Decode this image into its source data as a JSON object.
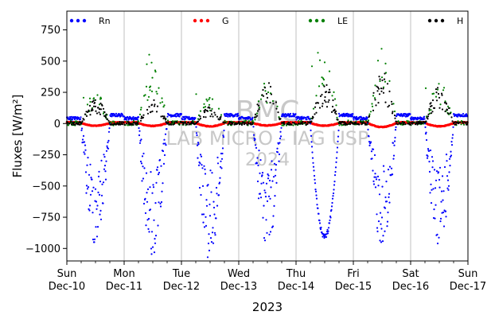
{
  "chart_data": {
    "type": "scatter",
    "xlabel": "2023",
    "ylabel": "Fluxes [W/m²]",
    "ylim": [
      -1100,
      900
    ],
    "yticks": [
      -1000,
      -750,
      -500,
      -250,
      0,
      250,
      500,
      750
    ],
    "xlim": [
      "2023-12-10",
      "2023-12-17"
    ],
    "x_ticks": [
      {
        "day": "Sun",
        "date": "Dec-10"
      },
      {
        "day": "Mon",
        "date": "Dec-11"
      },
      {
        "day": "Tue",
        "date": "Dec-12"
      },
      {
        "day": "Wed",
        "date": "Dec-13"
      },
      {
        "day": "Thu",
        "date": "Dec-14"
      },
      {
        "day": "Fri",
        "date": "Dec-15"
      },
      {
        "day": "Sat",
        "date": "Dec-16"
      },
      {
        "day": "Sun",
        "date": "Dec-17"
      }
    ],
    "grid": "vertical",
    "legend": {
      "placement": "top",
      "entries": [
        "Rn",
        "G",
        "LE",
        "H"
      ]
    },
    "watermark": [
      "BMC",
      "LAB MICRO - IAG USP",
      "2024"
    ],
    "series": [
      {
        "name": "Rn",
        "color": "#0000ff",
        "daily_min": [
          -950,
          -1060,
          -1070,
          -950,
          -915,
          -950,
          -960
        ],
        "night_level": 45
      },
      {
        "name": "G",
        "color": "#ff0000",
        "daily_min": [
          -20,
          -22,
          -25,
          -18,
          -20,
          -30,
          -25
        ],
        "daily_max": [
          40,
          15,
          15,
          20,
          20,
          15,
          15
        ]
      },
      {
        "name": "LE",
        "color": "#008000",
        "daily_max": [
          290,
          600,
          250,
          400,
          600,
          660,
          390
        ]
      },
      {
        "name": "H",
        "color": "#000000",
        "daily_max": [
          200,
          200,
          140,
          340,
          320,
          420,
          300
        ]
      }
    ]
  }
}
